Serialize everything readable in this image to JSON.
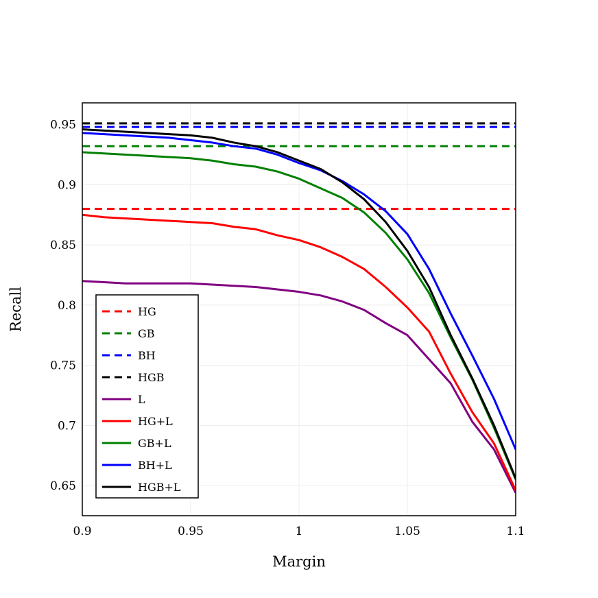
{
  "chart_data": {
    "type": "line",
    "title": "",
    "xlabel": "Margin",
    "ylabel": "Recall",
    "xlim": [
      0.9,
      1.1
    ],
    "ylim": [
      0.625,
      0.968
    ],
    "grid": true,
    "legend_position": "bottom-left",
    "x_ticks": [
      0.9,
      0.95,
      1.0,
      1.05,
      1.1
    ],
    "x_tick_labels": [
      "0.9",
      "0.95",
      "1",
      "1.05",
      "1.1"
    ],
    "y_ticks": [
      0.65,
      0.7,
      0.75,
      0.8,
      0.85,
      0.9,
      0.95
    ],
    "y_tick_labels": [
      "0.65",
      "0.7",
      "0.75",
      "0.8",
      "0.85",
      "0.9",
      "0.95"
    ],
    "x": [
      0.9,
      0.91,
      0.92,
      0.93,
      0.94,
      0.95,
      0.96,
      0.97,
      0.98,
      0.99,
      1.0,
      1.01,
      1.02,
      1.03,
      1.04,
      1.05,
      1.06,
      1.07,
      1.08,
      1.09,
      1.1
    ],
    "series": [
      {
        "name": "HG",
        "style": "dashed",
        "color": "#ff0000",
        "values": [
          0.88,
          0.88,
          0.88,
          0.88,
          0.88,
          0.88,
          0.88,
          0.88,
          0.88,
          0.88,
          0.88,
          0.88,
          0.88,
          0.88,
          0.88,
          0.88,
          0.88,
          0.88,
          0.88,
          0.88,
          0.88
        ]
      },
      {
        "name": "GB",
        "style": "dashed",
        "color": "#008000",
        "values": [
          0.932,
          0.932,
          0.932,
          0.932,
          0.932,
          0.932,
          0.932,
          0.932,
          0.932,
          0.932,
          0.932,
          0.932,
          0.932,
          0.932,
          0.932,
          0.932,
          0.932,
          0.932,
          0.932,
          0.932,
          0.932
        ]
      },
      {
        "name": "BH",
        "style": "dashed",
        "color": "#0000ff",
        "values": [
          0.948,
          0.948,
          0.948,
          0.948,
          0.948,
          0.948,
          0.948,
          0.948,
          0.948,
          0.948,
          0.948,
          0.948,
          0.948,
          0.948,
          0.948,
          0.948,
          0.948,
          0.948,
          0.948,
          0.948,
          0.948
        ]
      },
      {
        "name": "HGB",
        "style": "dashed",
        "color": "#000000",
        "values": [
          0.951,
          0.951,
          0.951,
          0.951,
          0.951,
          0.951,
          0.951,
          0.951,
          0.951,
          0.951,
          0.951,
          0.951,
          0.951,
          0.951,
          0.951,
          0.951,
          0.951,
          0.951,
          0.951,
          0.951,
          0.951
        ]
      },
      {
        "name": "L",
        "style": "solid",
        "color": "#800080",
        "values": [
          0.82,
          0.819,
          0.818,
          0.818,
          0.818,
          0.818,
          0.817,
          0.816,
          0.815,
          0.813,
          0.811,
          0.808,
          0.803,
          0.796,
          0.785,
          0.775,
          0.755,
          0.735,
          0.703,
          0.68,
          0.644
        ]
      },
      {
        "name": "HG+L",
        "style": "solid",
        "color": "#ff0000",
        "values": [
          0.875,
          0.873,
          0.872,
          0.871,
          0.87,
          0.869,
          0.868,
          0.865,
          0.863,
          0.858,
          0.854,
          0.848,
          0.84,
          0.83,
          0.815,
          0.798,
          0.778,
          0.743,
          0.711,
          0.685,
          0.646
        ]
      },
      {
        "name": "GB+L",
        "style": "solid",
        "color": "#008000",
        "values": [
          0.927,
          0.926,
          0.925,
          0.924,
          0.923,
          0.922,
          0.92,
          0.917,
          0.915,
          0.911,
          0.905,
          0.897,
          0.889,
          0.877,
          0.86,
          0.838,
          0.81,
          0.773,
          0.738,
          0.698,
          0.655
        ]
      },
      {
        "name": "BH+L",
        "style": "solid",
        "color": "#0000ff",
        "values": [
          0.943,
          0.942,
          0.941,
          0.94,
          0.939,
          0.937,
          0.935,
          0.932,
          0.93,
          0.925,
          0.918,
          0.912,
          0.903,
          0.892,
          0.878,
          0.859,
          0.83,
          0.793,
          0.758,
          0.722,
          0.68
        ]
      },
      {
        "name": "HGB+L",
        "style": "solid",
        "color": "#000000",
        "values": [
          0.946,
          0.945,
          0.944,
          0.943,
          0.942,
          0.941,
          0.939,
          0.935,
          0.932,
          0.927,
          0.92,
          0.913,
          0.902,
          0.888,
          0.869,
          0.845,
          0.815,
          0.775,
          0.739,
          0.7,
          0.656
        ]
      }
    ]
  }
}
